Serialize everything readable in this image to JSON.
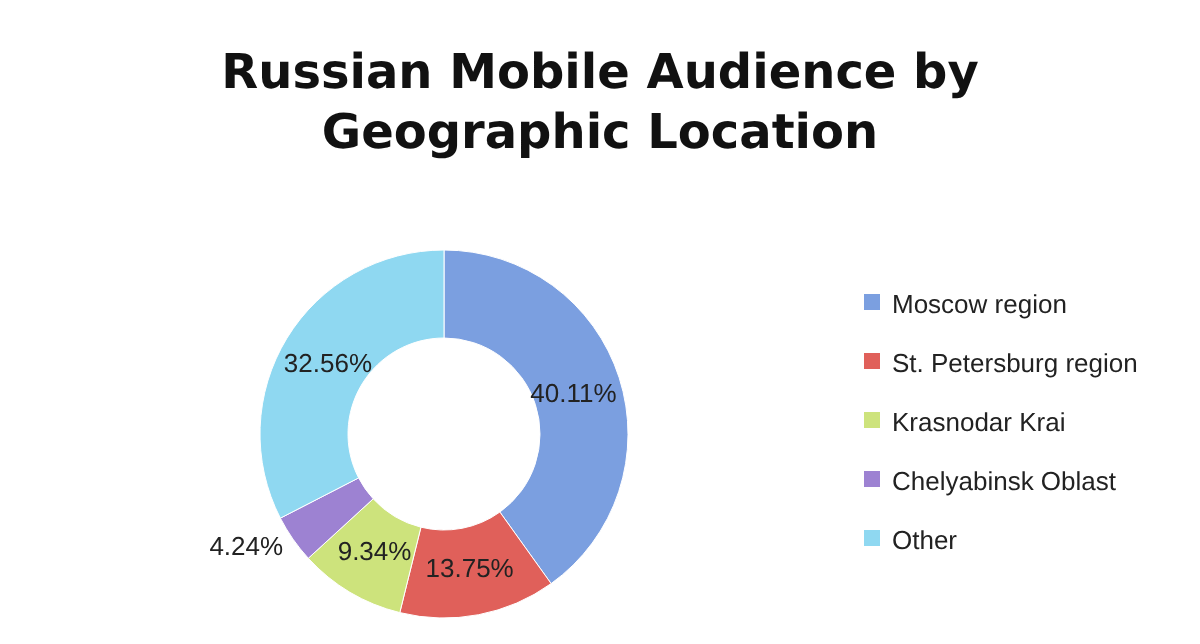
{
  "chart_data": {
    "type": "donut",
    "title": "Russian Mobile Audience by Geographic Location",
    "categories": [
      "Moscow region",
      "St. Petersburg region",
      "Krasnodar Krai",
      "Chelyabinsk Oblast",
      "Other"
    ],
    "values": [
      40.11,
      13.75,
      9.34,
      4.24,
      32.56
    ],
    "colors": [
      "#7b9fe0",
      "#e0605a",
      "#cde37c",
      "#9d82d2",
      "#8fd8f1"
    ],
    "value_labels": [
      "40.11%",
      "13.75%",
      "9.34%",
      "4.24%",
      "32.56%"
    ],
    "legend": "right"
  }
}
